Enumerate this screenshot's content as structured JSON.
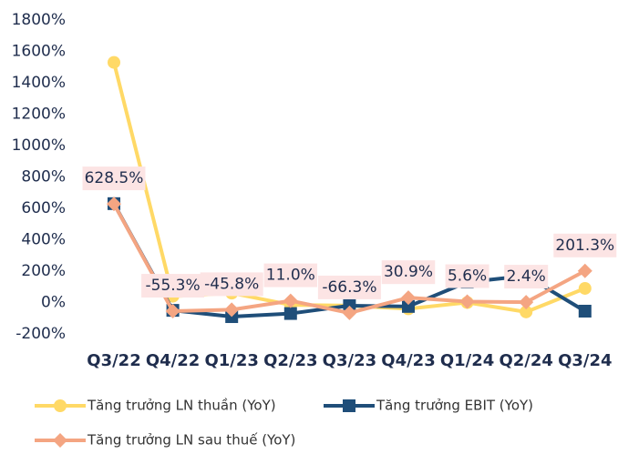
{
  "chart_data": {
    "type": "line",
    "categories": [
      "Q3/22",
      "Q4/22",
      "Q1/23",
      "Q2/23",
      "Q3/23",
      "Q4/23",
      "Q1/24",
      "Q2/24",
      "Q3/24"
    ],
    "series": [
      {
        "name": "Tăng trưởng LN thuần (YoY)",
        "color": "#FFD966",
        "marker": "circle",
        "values": [
          1530,
          40,
          60,
          -15,
          -20,
          -40,
          0,
          -60,
          90
        ]
      },
      {
        "name": "Tăng trưởng EBIT (YoY)",
        "color": "#1F4E79",
        "marker": "square",
        "values": [
          630,
          -50,
          -90,
          -70,
          -20,
          -25,
          130,
          170,
          -55
        ]
      },
      {
        "name": "Tăng trưởng LN sau thuế (YoY)",
        "color": "#F4A582",
        "marker": "diamond",
        "values": [
          628.5,
          -55.3,
          -45.8,
          11.0,
          -66.3,
          30.9,
          5.6,
          2.4,
          201.3
        ],
        "value_labels": [
          "628.5%",
          "-55.3%",
          "-45.8%",
          "11.0%",
          "-66.3%",
          "30.9%",
          "5.6%",
          "2.4%",
          "201.3%"
        ]
      }
    ],
    "ylim": [
      -200,
      1800
    ],
    "yticks": [
      {
        "value": -200,
        "label": "-200%"
      },
      {
        "value": 0,
        "label": "0%"
      },
      {
        "value": 200,
        "label": "200%"
      },
      {
        "value": 400,
        "label": "400%"
      },
      {
        "value": 600,
        "label": "600%"
      },
      {
        "value": 800,
        "label": "800%"
      },
      {
        "value": 1000,
        "label": "1000%"
      },
      {
        "value": 1200,
        "label": "1200%"
      },
      {
        "value": 1400,
        "label": "1400%"
      },
      {
        "value": 1600,
        "label": "1600%"
      },
      {
        "value": 1800,
        "label": "1800%"
      }
    ],
    "grid": false,
    "legend": "bottom"
  }
}
